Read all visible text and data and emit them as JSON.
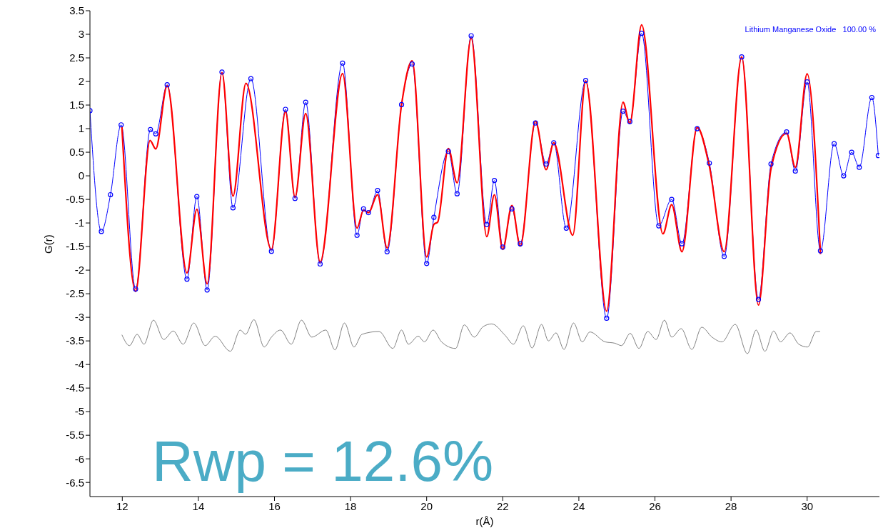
{
  "chart_data": {
    "type": "line",
    "xlabel": "r(Å)",
    "ylabel": "G(r)",
    "xlim": [
      11.15,
      31.9
    ],
    "xticks": [
      12,
      14,
      16,
      18,
      20,
      22,
      24,
      26,
      28,
      30
    ],
    "ylim": [
      -6.8,
      3.5
    ],
    "yticks": [
      3.5,
      3,
      2.5,
      2,
      1.5,
      1,
      0.5,
      0,
      -0.5,
      -1,
      -1.5,
      -2,
      -2.5,
      -3,
      -3.5,
      -4,
      -4.5,
      -5,
      -5.5,
      -6,
      -6.5
    ],
    "series": [
      {
        "color": "#0000ff",
        "marker": "circle",
        "x": [
          11.15,
          11.45,
          11.69,
          11.97,
          12.35,
          12.74,
          12.88,
          13.18,
          13.7,
          13.96,
          14.23,
          14.62,
          14.91,
          15.38,
          15.92,
          16.29,
          16.54,
          16.82,
          17.2,
          17.79,
          18.17,
          18.34,
          18.47,
          18.71,
          18.96,
          19.34,
          19.62,
          20.0,
          20.19,
          20.57,
          20.8,
          21.17,
          21.58,
          21.78,
          22.0,
          22.24,
          22.46,
          22.86,
          23.14,
          23.34,
          23.67,
          24.18,
          24.73,
          25.16,
          25.34,
          25.65,
          26.1,
          26.44,
          26.71,
          27.11,
          27.43,
          27.82,
          28.28,
          28.72,
          29.05,
          29.46,
          29.69,
          30.0,
          30.35,
          30.71,
          30.96,
          31.17,
          31.37,
          31.7,
          31.87
        ],
        "values": [
          1.38,
          -1.18,
          -0.4,
          1.08,
          -2.4,
          0.98,
          0.89,
          1.93,
          -2.19,
          -0.44,
          -2.42,
          2.2,
          -0.68,
          2.06,
          -1.6,
          1.41,
          -0.48,
          1.56,
          -1.87,
          2.39,
          -1.26,
          -0.7,
          -0.78,
          -0.31,
          -1.61,
          1.51,
          2.37,
          -1.86,
          -0.88,
          0.52,
          -0.38,
          2.97,
          -1.03,
          -0.1,
          -1.51,
          -0.7,
          -1.44,
          1.12,
          0.25,
          0.7,
          -1.11,
          2.02,
          -3.02,
          1.37,
          1.15,
          3.02,
          -1.06,
          -0.5,
          -1.44,
          1.0,
          0.27,
          -1.71,
          2.52,
          -2.62,
          0.25,
          0.93,
          0.1,
          1.99,
          -1.59,
          0.68,
          0.0,
          0.5,
          0.18,
          1.66,
          0.43
        ]
      },
      {
        "color": "#ff0000",
        "x": [
          11.99,
          12.35,
          12.73,
          12.88,
          13.18,
          13.7,
          13.96,
          14.23,
          14.62,
          14.91,
          15.25,
          15.92,
          16.29,
          16.54,
          16.82,
          17.2,
          17.79,
          18.17,
          18.34,
          18.47,
          18.71,
          18.96,
          19.34,
          19.62,
          20.0,
          20.19,
          20.29,
          20.57,
          20.8,
          21.17,
          21.58,
          21.78,
          22.0,
          22.24,
          22.46,
          22.86,
          23.14,
          23.34,
          23.84,
          24.18,
          24.73,
          25.16,
          25.34,
          25.65,
          26.21,
          26.44,
          26.71,
          27.11,
          27.43,
          27.82,
          28.28,
          28.72,
          29.05,
          29.46,
          29.69,
          30.0,
          30.35
        ],
        "values": [
          1.04,
          -2.45,
          0.75,
          0.57,
          1.91,
          -2.06,
          -0.71,
          -2.29,
          2.19,
          -0.43,
          1.96,
          -1.56,
          1.36,
          -0.45,
          1.32,
          -1.83,
          2.17,
          -1.11,
          -0.73,
          -0.78,
          -0.4,
          -1.53,
          1.51,
          2.44,
          -1.72,
          -1.03,
          -0.98,
          0.58,
          -0.15,
          2.92,
          -1.29,
          -0.4,
          -1.56,
          -0.63,
          -1.49,
          1.16,
          0.13,
          0.7,
          -1.26,
          2.01,
          -2.87,
          1.56,
          1.11,
          3.2,
          -1.23,
          -0.61,
          -1.61,
          1.03,
          0.2,
          -1.61,
          2.52,
          -2.74,
          0.15,
          0.9,
          0.18,
          2.16,
          -1.66
        ]
      },
      {
        "color": "#808080",
        "x": [
          11.99,
          12.19,
          12.39,
          12.57,
          12.82,
          13.09,
          13.34,
          13.6,
          13.88,
          14.18,
          14.44,
          14.84,
          15.1,
          15.24,
          15.46,
          15.73,
          15.92,
          16.16,
          16.44,
          16.71,
          16.98,
          17.35,
          17.59,
          17.84,
          18.09,
          18.3,
          18.75,
          19.11,
          19.34,
          19.52,
          19.78,
          19.94,
          20.17,
          20.39,
          20.76,
          20.99,
          21.25,
          21.48,
          21.71,
          22.07,
          22.28,
          22.54,
          22.77,
          23.02,
          23.2,
          23.4,
          23.61,
          23.86,
          24.09,
          24.29,
          24.69,
          24.95,
          25.12,
          25.35,
          25.58,
          25.81,
          26.03,
          26.25,
          26.44,
          26.69,
          26.97,
          27.23,
          27.5,
          27.76,
          28.11,
          28.43,
          28.66,
          28.89,
          29.12,
          29.3,
          29.55,
          29.78,
          30.01,
          30.24,
          30.34
        ],
        "values": [
          -3.37,
          -3.6,
          -3.36,
          -3.57,
          -3.06,
          -3.47,
          -3.29,
          -3.57,
          -3.12,
          -3.6,
          -3.4,
          -3.72,
          -3.27,
          -3.36,
          -3.05,
          -3.63,
          -3.42,
          -3.27,
          -3.57,
          -3.06,
          -3.42,
          -3.27,
          -3.69,
          -3.12,
          -3.63,
          -3.36,
          -3.3,
          -3.66,
          -3.27,
          -3.57,
          -3.4,
          -3.52,
          -3.27,
          -3.52,
          -3.66,
          -3.16,
          -3.42,
          -3.2,
          -3.14,
          -3.39,
          -3.57,
          -3.18,
          -3.65,
          -3.15,
          -3.5,
          -3.33,
          -3.68,
          -3.12,
          -3.52,
          -3.31,
          -3.52,
          -3.55,
          -3.6,
          -3.34,
          -3.66,
          -3.3,
          -3.47,
          -3.06,
          -3.42,
          -3.24,
          -3.68,
          -3.21,
          -3.42,
          -3.52,
          -3.15,
          -3.77,
          -3.27,
          -3.72,
          -3.29,
          -3.52,
          -3.33,
          -3.57,
          -3.63,
          -3.3,
          -3.3
        ]
      }
    ],
    "annotations": [
      "Lithium Manganese Oxide   100.00 %",
      "Rwp = 12.6%"
    ]
  }
}
